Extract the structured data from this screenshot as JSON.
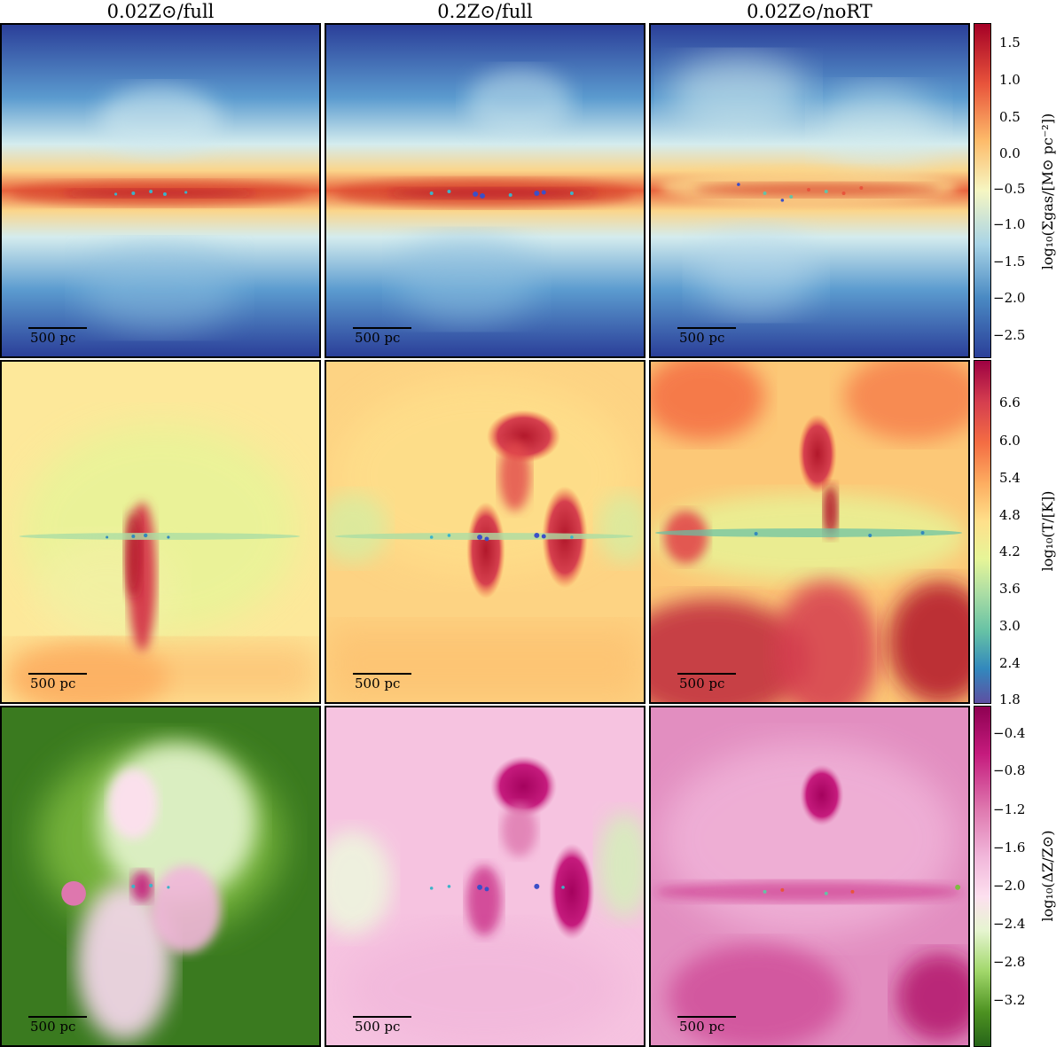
{
  "figure": {
    "column_titles": [
      "0.02Z⊙/full",
      "0.2Z⊙/full",
      "0.02Z⊙/noRT"
    ],
    "scalebar_label": "500 pc",
    "rows": [
      {
        "quantity": "surface-density",
        "colorbar_label": "log₁₀(Σgas/[M⊙ pc⁻²])",
        "colormap": [
          "#2b3f99",
          "#4a8ac3",
          "#a9d4e6",
          "#f6f6c2",
          "#fdbb6a",
          "#e8543b",
          "#a50026"
        ],
        "ticks": [
          "1.5",
          "1.0",
          "0.5",
          "0.0",
          "−0.5",
          "−1.0",
          "−1.5",
          "−2.0",
          "−2.5"
        ]
      },
      {
        "quantity": "temperature",
        "colorbar_label": "log₁₀(T/[K])",
        "colormap": [
          "#5e4fa2",
          "#3288bd",
          "#66c2a5",
          "#abdda4",
          "#e6f598",
          "#fee08b",
          "#fdae61",
          "#f46d43",
          "#d53e4f",
          "#9e0142"
        ],
        "ticks": [
          "6.6",
          "6.0",
          "5.4",
          "4.8",
          "4.2",
          "3.6",
          "3.0",
          "2.4",
          "1.8"
        ]
      },
      {
        "quantity": "metallicity",
        "colorbar_label": "log₁₀(ΔZ/Z⊙)",
        "colormap": [
          "#276419",
          "#4d9221",
          "#a1d76a",
          "#e6f5d0",
          "#fde0ef",
          "#f1b6da",
          "#de77ae",
          "#c51b7d",
          "#8e0152"
        ],
        "ticks": [
          "−0.4",
          "−0.8",
          "−1.2",
          "−1.6",
          "−2.0",
          "−2.4",
          "−2.8",
          "−3.2"
        ]
      }
    ]
  }
}
